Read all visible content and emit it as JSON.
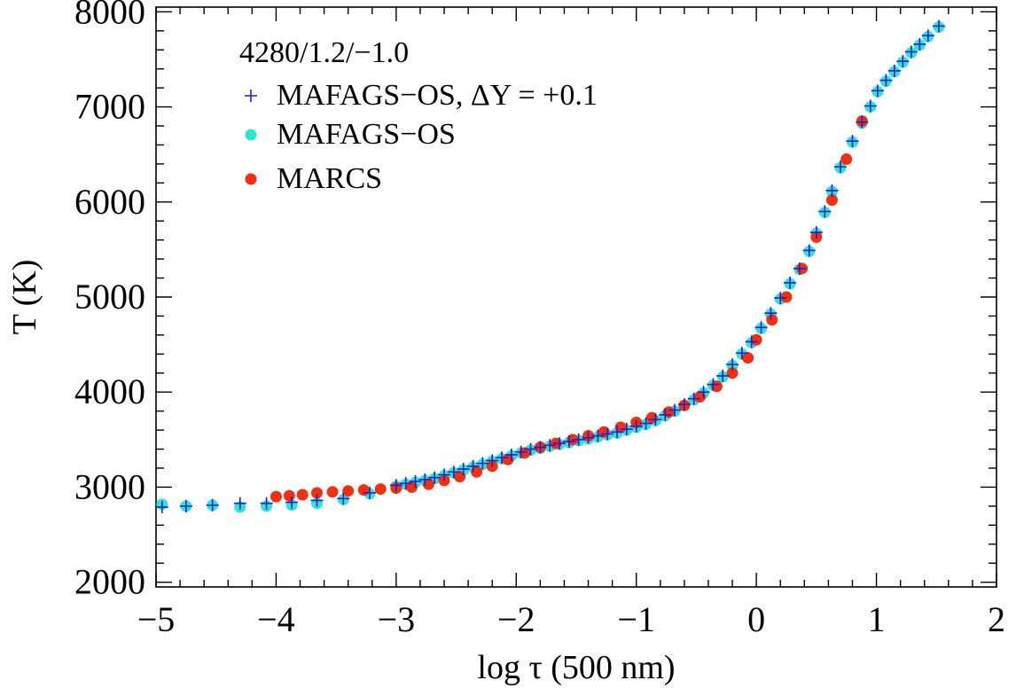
{
  "chart_data": {
    "type": "scatter",
    "title": "4280/1.2/−1.0",
    "xlabel": "log τ  (500 nm)",
    "ylabel": "T (K)",
    "xlim": [
      -5,
      2
    ],
    "ylim": [
      1950,
      8050
    ],
    "xticks": [
      -5,
      -4,
      -3,
      -2,
      -1,
      0,
      1,
      2
    ],
    "xtick_labels": [
      "−5",
      "−4",
      "−3",
      "−2",
      "−1",
      "0",
      "1",
      "2"
    ],
    "yticks": [
      2000,
      3000,
      4000,
      5000,
      6000,
      7000,
      8000
    ],
    "ytick_labels": [
      "2000",
      "3000",
      "4000",
      "5000",
      "6000",
      "7000",
      "8000"
    ],
    "legend_position": "top-left",
    "grid": false,
    "series": [
      {
        "name": "MAFAGS−OS, ΔY = +0.1",
        "marker": "plus",
        "color": "#1f1fd6",
        "points": [
          [
            -4.95,
            2790
          ],
          [
            -4.75,
            2800
          ],
          [
            -4.53,
            2810
          ],
          [
            -4.3,
            2830
          ],
          [
            -4.08,
            2830
          ],
          [
            -3.87,
            2840
          ],
          [
            -3.66,
            2860
          ],
          [
            -3.44,
            2880
          ],
          [
            -3.22,
            2940
          ],
          [
            -3.0,
            3020
          ],
          [
            -2.92,
            3040
          ],
          [
            -2.84,
            3060
          ],
          [
            -2.76,
            3080
          ],
          [
            -2.68,
            3100
          ],
          [
            -2.6,
            3130
          ],
          [
            -2.52,
            3160
          ],
          [
            -2.44,
            3190
          ],
          [
            -2.36,
            3220
          ],
          [
            -2.28,
            3250
          ],
          [
            -2.2,
            3280
          ],
          [
            -2.12,
            3310
          ],
          [
            -2.04,
            3340
          ],
          [
            -1.96,
            3370
          ],
          [
            -1.88,
            3400
          ],
          [
            -1.8,
            3420
          ],
          [
            -1.72,
            3440
          ],
          [
            -1.64,
            3460
          ],
          [
            -1.56,
            3480
          ],
          [
            -1.48,
            3500
          ],
          [
            -1.4,
            3520
          ],
          [
            -1.32,
            3540
          ],
          [
            -1.24,
            3560
          ],
          [
            -1.16,
            3580
          ],
          [
            -1.08,
            3610
          ],
          [
            -1.0,
            3640
          ],
          [
            -0.92,
            3670
          ],
          [
            -0.84,
            3710
          ],
          [
            -0.76,
            3760
          ],
          [
            -0.68,
            3810
          ],
          [
            -0.6,
            3870
          ],
          [
            -0.52,
            3930
          ],
          [
            -0.44,
            4000
          ],
          [
            -0.36,
            4080
          ],
          [
            -0.28,
            4170
          ],
          [
            -0.2,
            4290
          ],
          [
            -0.12,
            4410
          ],
          [
            -0.04,
            4530
          ],
          [
            0.04,
            4680
          ],
          [
            0.12,
            4830
          ],
          [
            0.2,
            4990
          ],
          [
            0.28,
            5150
          ],
          [
            0.36,
            5300
          ],
          [
            0.44,
            5490
          ],
          [
            0.5,
            5680
          ],
          [
            0.57,
            5900
          ],
          [
            0.63,
            6120
          ],
          [
            0.7,
            6370
          ],
          [
            0.8,
            6640
          ],
          [
            0.88,
            6840
          ],
          [
            0.95,
            7010
          ],
          [
            1.01,
            7170
          ],
          [
            1.08,
            7280
          ],
          [
            1.15,
            7380
          ],
          [
            1.22,
            7480
          ],
          [
            1.29,
            7580
          ],
          [
            1.36,
            7660
          ],
          [
            1.43,
            7750
          ],
          [
            1.52,
            7850
          ]
        ]
      },
      {
        "name": "MAFAGS−OS",
        "marker": "circle",
        "color": "#2ee6cf",
        "points": [
          [
            -4.95,
            2820
          ],
          [
            -4.75,
            2800
          ],
          [
            -4.53,
            2810
          ],
          [
            -4.3,
            2790
          ],
          [
            -4.08,
            2800
          ],
          [
            -3.87,
            2810
          ],
          [
            -3.66,
            2830
          ],
          [
            -3.44,
            2870
          ],
          [
            -3.22,
            2930
          ],
          [
            -3.0,
            3010
          ],
          [
            -2.92,
            3030
          ],
          [
            -2.84,
            3050
          ],
          [
            -2.76,
            3070
          ],
          [
            -2.68,
            3090
          ],
          [
            -2.6,
            3120
          ],
          [
            -2.52,
            3150
          ],
          [
            -2.44,
            3180
          ],
          [
            -2.36,
            3210
          ],
          [
            -2.28,
            3240
          ],
          [
            -2.2,
            3270
          ],
          [
            -2.12,
            3300
          ],
          [
            -2.04,
            3330
          ],
          [
            -1.96,
            3360
          ],
          [
            -1.88,
            3390
          ],
          [
            -1.8,
            3410
          ],
          [
            -1.72,
            3430
          ],
          [
            -1.64,
            3450
          ],
          [
            -1.56,
            3470
          ],
          [
            -1.48,
            3490
          ],
          [
            -1.4,
            3510
          ],
          [
            -1.32,
            3530
          ],
          [
            -1.24,
            3550
          ],
          [
            -1.16,
            3570
          ],
          [
            -1.08,
            3600
          ],
          [
            -1.0,
            3630
          ],
          [
            -0.92,
            3660
          ],
          [
            -0.84,
            3700
          ],
          [
            -0.76,
            3750
          ],
          [
            -0.68,
            3800
          ],
          [
            -0.6,
            3860
          ],
          [
            -0.52,
            3920
          ],
          [
            -0.44,
            3990
          ],
          [
            -0.36,
            4070
          ],
          [
            -0.28,
            4160
          ],
          [
            -0.2,
            4280
          ],
          [
            -0.12,
            4400
          ],
          [
            -0.04,
            4520
          ],
          [
            0.04,
            4670
          ],
          [
            0.12,
            4820
          ],
          [
            0.2,
            4980
          ],
          [
            0.28,
            5140
          ],
          [
            0.36,
            5290
          ],
          [
            0.44,
            5480
          ],
          [
            0.5,
            5670
          ],
          [
            0.57,
            5890
          ],
          [
            0.63,
            6110
          ],
          [
            0.7,
            6360
          ],
          [
            0.8,
            6630
          ],
          [
            0.88,
            6830
          ],
          [
            0.95,
            7000
          ],
          [
            1.01,
            7160
          ],
          [
            1.08,
            7270
          ],
          [
            1.15,
            7370
          ],
          [
            1.22,
            7470
          ],
          [
            1.29,
            7570
          ],
          [
            1.36,
            7650
          ],
          [
            1.43,
            7740
          ],
          [
            1.52,
            7840
          ]
        ]
      },
      {
        "name": "MARCS",
        "marker": "circle",
        "color": "#f03010",
        "points": [
          [
            -4.0,
            2900
          ],
          [
            -3.89,
            2910
          ],
          [
            -3.78,
            2920
          ],
          [
            -3.66,
            2940
          ],
          [
            -3.53,
            2950
          ],
          [
            -3.4,
            2960
          ],
          [
            -3.27,
            2970
          ],
          [
            -3.13,
            2980
          ],
          [
            -3.0,
            2990
          ],
          [
            -2.87,
            3000
          ],
          [
            -2.73,
            3030
          ],
          [
            -2.6,
            3070
          ],
          [
            -2.47,
            3110
          ],
          [
            -2.33,
            3160
          ],
          [
            -2.2,
            3220
          ],
          [
            -2.07,
            3290
          ],
          [
            -1.93,
            3360
          ],
          [
            -1.8,
            3420
          ],
          [
            -1.67,
            3460
          ],
          [
            -1.53,
            3500
          ],
          [
            -1.4,
            3540
          ],
          [
            -1.27,
            3580
          ],
          [
            -1.13,
            3630
          ],
          [
            -1.0,
            3680
          ],
          [
            -0.87,
            3730
          ],
          [
            -0.73,
            3790
          ],
          [
            -0.6,
            3860
          ],
          [
            -0.47,
            3950
          ],
          [
            -0.33,
            4060
          ],
          [
            -0.2,
            4200
          ],
          [
            -0.07,
            4360
          ],
          [
            0.0,
            4550
          ],
          [
            0.13,
            4760
          ],
          [
            0.25,
            5000
          ],
          [
            0.38,
            5300
          ],
          [
            0.5,
            5630
          ],
          [
            0.63,
            6020
          ],
          [
            0.75,
            6450
          ],
          [
            0.88,
            6850
          ]
        ]
      }
    ]
  }
}
